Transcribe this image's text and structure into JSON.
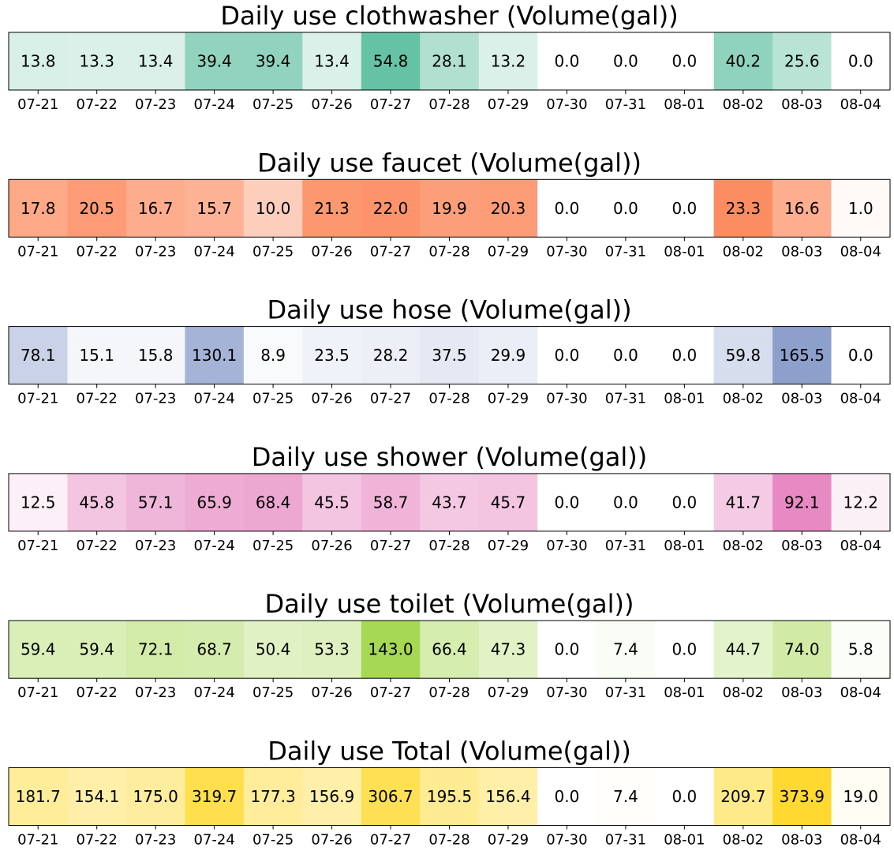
{
  "chart_data": [
    {
      "type": "heatmap",
      "title": "Daily use clothwasher (Volume(gal))",
      "categories": [
        "07-21",
        "07-22",
        "07-23",
        "07-24",
        "07-25",
        "07-26",
        "07-27",
        "07-28",
        "07-29",
        "07-30",
        "07-31",
        "08-01",
        "08-02",
        "08-03",
        "08-04"
      ],
      "values": [
        13.8,
        13.3,
        13.4,
        39.4,
        39.4,
        13.4,
        54.8,
        28.1,
        13.2,
        0.0,
        0.0,
        0.0,
        40.2,
        25.6,
        0.0
      ],
      "value_labels": [
        "13.8",
        "13.3",
        "13.4",
        "39.4",
        "39.4",
        "13.4",
        "54.8",
        "28.1",
        "13.2",
        "0.0",
        "0.0",
        "0.0",
        "40.2",
        "25.6",
        "0.0"
      ],
      "color": "#66c2a5"
    },
    {
      "type": "heatmap",
      "title": "Daily use faucet (Volume(gal))",
      "categories": [
        "07-21",
        "07-22",
        "07-23",
        "07-24",
        "07-25",
        "07-26",
        "07-27",
        "07-28",
        "07-29",
        "07-30",
        "07-31",
        "08-01",
        "08-02",
        "08-03",
        "08-04"
      ],
      "values": [
        17.8,
        20.5,
        16.7,
        15.7,
        10.0,
        21.3,
        22.0,
        19.9,
        20.3,
        0.0,
        0.0,
        0.0,
        23.3,
        16.6,
        1.0
      ],
      "value_labels": [
        "17.8",
        "20.5",
        "16.7",
        "15.7",
        "10.0",
        "21.3",
        "22.0",
        "19.9",
        "20.3",
        "0.0",
        "0.0",
        "0.0",
        "23.3",
        "16.6",
        "1.0"
      ],
      "color": "#fc8d62"
    },
    {
      "type": "heatmap",
      "title": "Daily use hose (Volume(gal))",
      "categories": [
        "07-21",
        "07-22",
        "07-23",
        "07-24",
        "07-25",
        "07-26",
        "07-27",
        "07-28",
        "07-29",
        "07-30",
        "07-31",
        "08-01",
        "08-02",
        "08-03",
        "08-04"
      ],
      "values": [
        78.1,
        15.1,
        15.8,
        130.1,
        8.9,
        23.5,
        28.2,
        37.5,
        29.9,
        0.0,
        0.0,
        0.0,
        59.8,
        165.5,
        0.0
      ],
      "value_labels": [
        "78.1",
        "15.1",
        "15.8",
        "130.1",
        "8.9",
        "23.5",
        "28.2",
        "37.5",
        "29.9",
        "0.0",
        "0.0",
        "0.0",
        "59.8",
        "165.5",
        "0.0"
      ],
      "color": "#8da0cb"
    },
    {
      "type": "heatmap",
      "title": "Daily use shower (Volume(gal))",
      "categories": [
        "07-21",
        "07-22",
        "07-23",
        "07-24",
        "07-25",
        "07-26",
        "07-27",
        "07-28",
        "07-29",
        "07-30",
        "07-31",
        "08-01",
        "08-02",
        "08-03",
        "08-04"
      ],
      "values": [
        12.5,
        45.8,
        57.1,
        65.9,
        68.4,
        45.5,
        58.7,
        43.7,
        45.7,
        0.0,
        0.0,
        0.0,
        41.7,
        92.1,
        12.2
      ],
      "value_labels": [
        "12.5",
        "45.8",
        "57.1",
        "65.9",
        "68.4",
        "45.5",
        "58.7",
        "43.7",
        "45.7",
        "0.0",
        "0.0",
        "0.0",
        "41.7",
        "92.1",
        "12.2"
      ],
      "color": "#e78ac3"
    },
    {
      "type": "heatmap",
      "title": "Daily use toilet (Volume(gal))",
      "categories": [
        "07-21",
        "07-22",
        "07-23",
        "07-24",
        "07-25",
        "07-26",
        "07-27",
        "07-28",
        "07-29",
        "07-30",
        "07-31",
        "08-01",
        "08-02",
        "08-03",
        "08-04"
      ],
      "values": [
        59.4,
        59.4,
        72.1,
        68.7,
        50.4,
        53.3,
        143.0,
        66.4,
        47.3,
        0.0,
        7.4,
        0.0,
        44.7,
        74.0,
        5.8
      ],
      "value_labels": [
        "59.4",
        "59.4",
        "72.1",
        "68.7",
        "50.4",
        "53.3",
        "143.0",
        "66.4",
        "47.3",
        "0.0",
        "7.4",
        "0.0",
        "44.7",
        "74.0",
        "5.8"
      ],
      "color": "#a6d854"
    },
    {
      "type": "heatmap",
      "title": "Daily use Total (Volume(gal))",
      "categories": [
        "07-21",
        "07-22",
        "07-23",
        "07-24",
        "07-25",
        "07-26",
        "07-27",
        "07-28",
        "07-29",
        "07-30",
        "07-31",
        "08-01",
        "08-02",
        "08-03",
        "08-04"
      ],
      "values": [
        181.7,
        154.1,
        175.0,
        319.7,
        177.3,
        156.9,
        306.7,
        195.5,
        156.4,
        0.0,
        7.4,
        0.0,
        209.7,
        373.9,
        19.0
      ],
      "value_labels": [
        "181.7",
        "154.1",
        "175.0",
        "319.7",
        "177.3",
        "156.9",
        "306.7",
        "195.5",
        "156.4",
        "0.0",
        "7.4",
        "0.0",
        "209.7",
        "373.9",
        "19.0"
      ],
      "color": "#ffd92f"
    }
  ]
}
